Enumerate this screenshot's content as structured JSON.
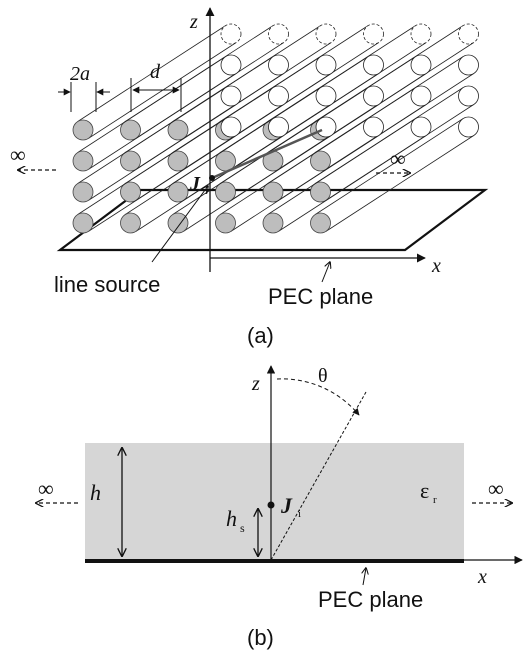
{
  "figure_a": {
    "caption": "(a)",
    "axis_z": "z",
    "axis_x": "x",
    "dim_2a": "2a",
    "dim_d": "d",
    "infinity_left": "∞",
    "infinity_right": "∞",
    "source_symbol": "J",
    "source_subscript": "i",
    "line_source_label": "line source",
    "pec_label": "PEC plane"
  },
  "figure_b": {
    "caption": "(b)",
    "axis_z": "z",
    "axis_x": "x",
    "theta": "θ",
    "height": "h",
    "source_height": "h",
    "source_height_sub": "s",
    "source_symbol": "J",
    "source_subscript": "i",
    "permittivity": "ε",
    "permittivity_sub": "r",
    "infinity_left": "∞",
    "infinity_right": "∞",
    "pec_label": "PEC plane"
  }
}
